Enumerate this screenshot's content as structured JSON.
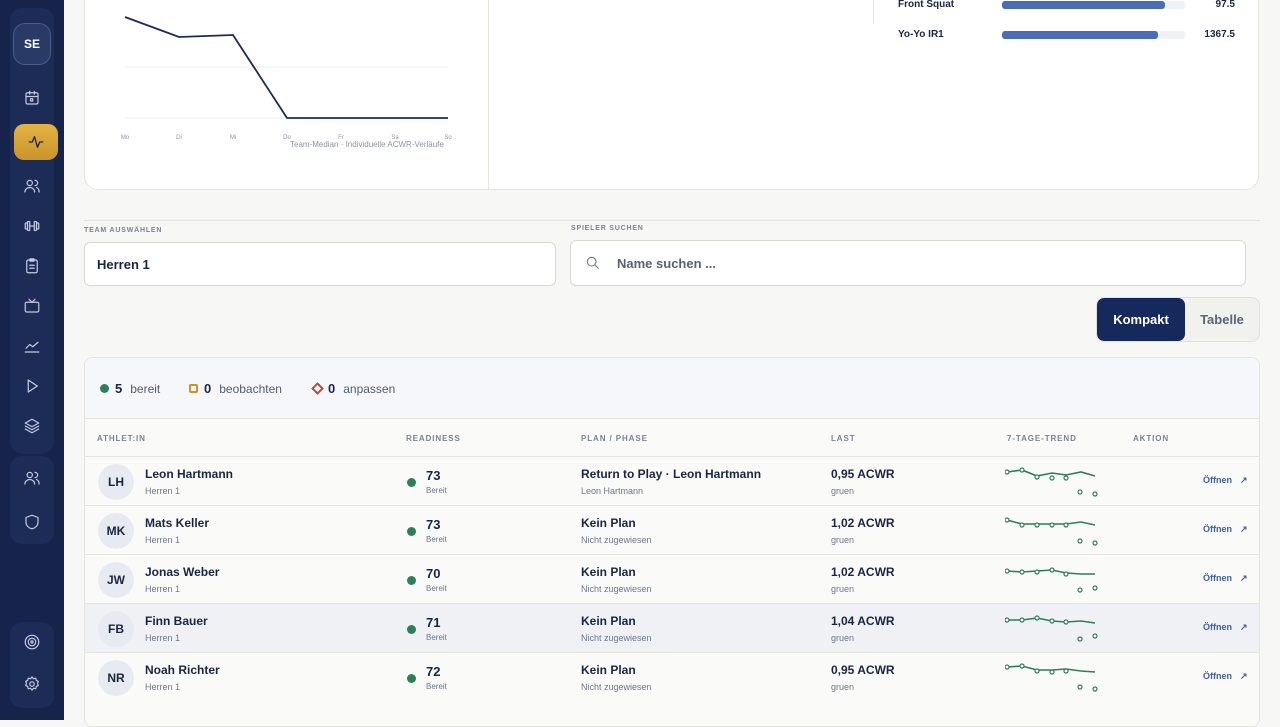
{
  "sidebar": {
    "avatar_initials": "SE",
    "icons": [
      "calendar-icon",
      "activity-icon",
      "users-icon",
      "dumbbell-icon",
      "clipboard-icon",
      "tv-icon",
      "chart-line-icon",
      "play-icon",
      "layers-icon",
      "team-icon",
      "shield-icon",
      "target-icon",
      "settings-icon"
    ],
    "accent": "#e4b445"
  },
  "top_chart": {
    "x_labels": [
      "Mo",
      "Di",
      "Mi",
      "Do",
      "Fr",
      "Sa",
      "So"
    ],
    "caption": "Team-Median · Individuelle ACWR-Verläufe",
    "line_color": "#1a2a5a"
  },
  "metrics": [
    {
      "name": "Front Squat",
      "value": "97.5",
      "fill": 0.89
    },
    {
      "name": "Yo-Yo IR1",
      "value": "1367.5",
      "fill": 0.85
    }
  ],
  "filters": {
    "team_label": "TEAM AUSWÄHLEN",
    "team_value": "Herren 1",
    "search_label": "SPIELER SUCHEN",
    "search_placeholder": "Name suchen ..."
  },
  "view_toggle": {
    "compact": "Kompakt",
    "table": "Tabelle"
  },
  "summary": {
    "ready_count": "5",
    "ready_label": "bereit",
    "watch_count": "0",
    "watch_label": "beobachten",
    "adjust_count": "0",
    "adjust_label": "anpassen"
  },
  "columns": [
    "ATHLET:IN",
    "READINESS",
    "PLAN / PHASE",
    "LAST",
    "7-TAGE-TREND",
    "AKTION"
  ],
  "rows": [
    {
      "initials": "LH",
      "name": "Leon Hartmann",
      "team": "Herren 1",
      "readiness": "73",
      "status": "Bereit",
      "plan": "Return to Play · Leon Hartmann",
      "plan_sub": "Leon Hartmann",
      "load": "0,95 ACWR",
      "load_sub": "gruen",
      "action": "Öffnen",
      "highlight": false
    },
    {
      "initials": "MK",
      "name": "Mats Keller",
      "team": "Herren 1",
      "readiness": "73",
      "status": "Bereit",
      "plan": "Kein Plan",
      "plan_sub": "Nicht zugewiesen",
      "load": "1,02 ACWR",
      "load_sub": "gruen",
      "action": "Öffnen",
      "highlight": false
    },
    {
      "initials": "JW",
      "name": "Jonas Weber",
      "team": "Herren 1",
      "readiness": "70",
      "status": "Bereit",
      "plan": "Kein Plan",
      "plan_sub": "Nicht zugewiesen",
      "load": "1,02 ACWR",
      "load_sub": "gruen",
      "action": "Öffnen",
      "highlight": false
    },
    {
      "initials": "FB",
      "name": "Finn Bauer",
      "team": "Herren 1",
      "readiness": "71",
      "status": "Bereit",
      "plan": "Kein Plan",
      "plan_sub": "Nicht zugewiesen",
      "load": "1,04 ACWR",
      "load_sub": "gruen",
      "action": "Öffnen",
      "highlight": true
    },
    {
      "initials": "NR",
      "name": "Noah Richter",
      "team": "Herren 1",
      "readiness": "72",
      "status": "Bereit",
      "plan": "Kein Plan",
      "plan_sub": "Nicht zugewiesen",
      "load": "0,95 ACWR",
      "load_sub": "gruen",
      "action": "Öffnen",
      "highlight": false
    }
  ]
}
